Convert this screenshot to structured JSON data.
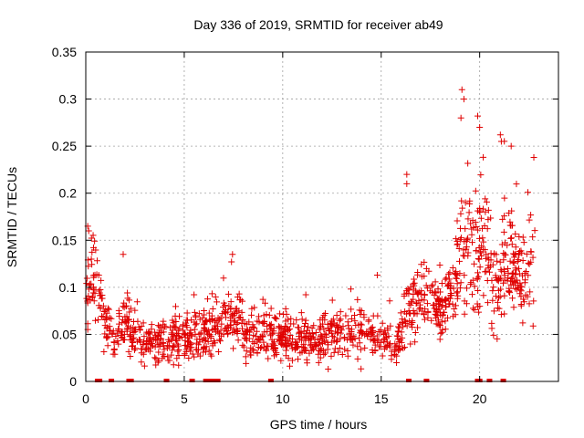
{
  "chart_data": {
    "type": "scatter",
    "title": "Day 336 of 2019, SRMTID for receiver ab49",
    "xlabel": "GPS time / hours",
    "ylabel": "SRMTID / TECUs",
    "xlim": [
      0,
      24
    ],
    "ylim": [
      0,
      0.35
    ],
    "x_ticks": [
      0,
      5,
      10,
      15,
      20
    ],
    "y_ticks": [
      0,
      0.05,
      0.1,
      0.15,
      0.2,
      0.25,
      0.3,
      0.35
    ],
    "x_tick_labels": [
      "0",
      "5",
      "10",
      "15",
      "20"
    ],
    "y_tick_labels": [
      "0",
      "0.05",
      "0.1",
      "0.15",
      "0.2",
      "0.25",
      "0.3",
      "0.35"
    ],
    "grid": true,
    "marker": "+",
    "color": "#e00000",
    "trend": [
      {
        "x": 0.0,
        "y": 0.09,
        "spread": 0.04
      },
      {
        "x": 0.3,
        "y": 0.12,
        "spread": 0.035
      },
      {
        "x": 0.6,
        "y": 0.1,
        "spread": 0.03
      },
      {
        "x": 1.0,
        "y": 0.06,
        "spread": 0.025
      },
      {
        "x": 1.5,
        "y": 0.05,
        "spread": 0.02
      },
      {
        "x": 2.0,
        "y": 0.07,
        "spread": 0.03
      },
      {
        "x": 2.5,
        "y": 0.045,
        "spread": 0.02
      },
      {
        "x": 3.0,
        "y": 0.04,
        "spread": 0.018
      },
      {
        "x": 4.0,
        "y": 0.042,
        "spread": 0.02
      },
      {
        "x": 5.0,
        "y": 0.045,
        "spread": 0.02
      },
      {
        "x": 6.0,
        "y": 0.05,
        "spread": 0.022
      },
      {
        "x": 7.0,
        "y": 0.06,
        "spread": 0.025
      },
      {
        "x": 7.5,
        "y": 0.065,
        "spread": 0.03
      },
      {
        "x": 8.0,
        "y": 0.05,
        "spread": 0.025
      },
      {
        "x": 9.0,
        "y": 0.05,
        "spread": 0.025
      },
      {
        "x": 10.0,
        "y": 0.045,
        "spread": 0.02
      },
      {
        "x": 11.0,
        "y": 0.045,
        "spread": 0.022
      },
      {
        "x": 12.0,
        "y": 0.045,
        "spread": 0.02
      },
      {
        "x": 13.0,
        "y": 0.05,
        "spread": 0.022
      },
      {
        "x": 14.0,
        "y": 0.055,
        "spread": 0.025
      },
      {
        "x": 15.0,
        "y": 0.05,
        "spread": 0.022
      },
      {
        "x": 15.8,
        "y": 0.035,
        "spread": 0.015
      },
      {
        "x": 16.3,
        "y": 0.08,
        "spread": 0.04
      },
      {
        "x": 17.0,
        "y": 0.09,
        "spread": 0.03
      },
      {
        "x": 18.0,
        "y": 0.08,
        "spread": 0.025
      },
      {
        "x": 18.7,
        "y": 0.09,
        "spread": 0.035
      },
      {
        "x": 19.2,
        "y": 0.15,
        "spread": 0.07
      },
      {
        "x": 19.7,
        "y": 0.13,
        "spread": 0.06
      },
      {
        "x": 20.2,
        "y": 0.14,
        "spread": 0.06
      },
      {
        "x": 20.7,
        "y": 0.09,
        "spread": 0.04
      },
      {
        "x": 21.2,
        "y": 0.11,
        "spread": 0.06
      },
      {
        "x": 21.7,
        "y": 0.12,
        "spread": 0.05
      },
      {
        "x": 22.2,
        "y": 0.11,
        "spread": 0.05
      },
      {
        "x": 22.8,
        "y": 0.14,
        "spread": 0.06
      }
    ],
    "range_hours": [
      0,
      22.8
    ],
    "approx_points": 1400,
    "peaks": [
      {
        "x": 19.1,
        "y": 0.31
      },
      {
        "x": 19.2,
        "y": 0.3
      },
      {
        "x": 19.05,
        "y": 0.28
      },
      {
        "x": 19.9,
        "y": 0.282
      },
      {
        "x": 20.0,
        "y": 0.27
      },
      {
        "x": 21.05,
        "y": 0.262
      },
      {
        "x": 21.1,
        "y": 0.255
      },
      {
        "x": 21.6,
        "y": 0.25
      },
      {
        "x": 22.75,
        "y": 0.238
      },
      {
        "x": 16.3,
        "y": 0.22
      },
      {
        "x": 16.3,
        "y": 0.21
      },
      {
        "x": 7.45,
        "y": 0.135
      },
      {
        "x": 7.4,
        "y": 0.127
      },
      {
        "x": 0.1,
        "y": 0.165
      },
      {
        "x": 0.15,
        "y": 0.16
      },
      {
        "x": 1.9,
        "y": 0.135
      },
      {
        "x": 14.8,
        "y": 0.113
      }
    ],
    "zero_value_hours": [
      0.6,
      0.7,
      1.3,
      2.2,
      2.3,
      4.1,
      5.4,
      6.1,
      6.2,
      6.3,
      6.4,
      6.5,
      6.6,
      6.7,
      9.4,
      16.4,
      17.3,
      19.9,
      20.0,
      20.5,
      21.2
    ]
  }
}
